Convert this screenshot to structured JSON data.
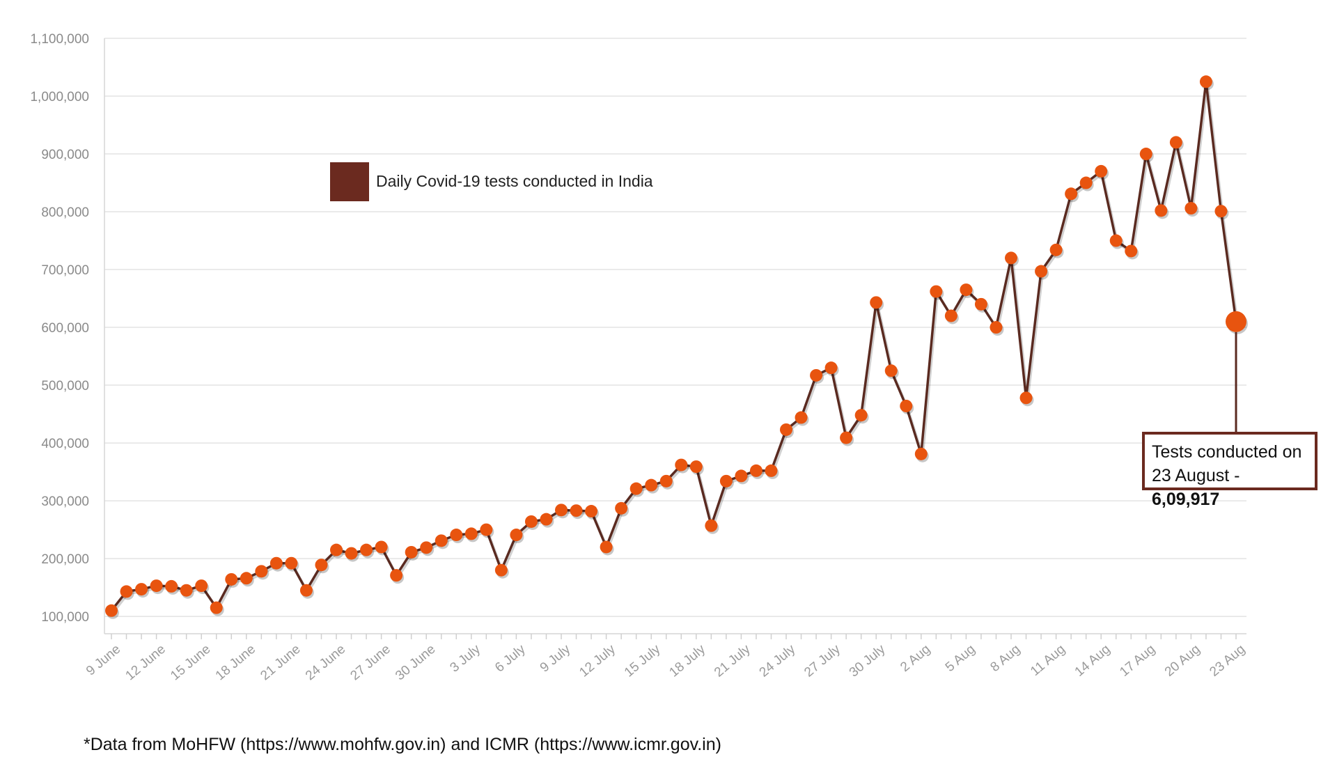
{
  "chart_data": {
    "type": "line",
    "title": "",
    "xlabel": "",
    "ylabel": "",
    "legend": {
      "label": "Daily Covid-19 tests conducted in India",
      "color": "#6b2a1f",
      "placement": "top-left"
    },
    "ylim": [
      70000,
      1100000
    ],
    "yticks": [
      100000,
      200000,
      300000,
      400000,
      500000,
      600000,
      700000,
      800000,
      900000,
      1000000,
      1100000
    ],
    "ytick_labels": [
      "100,000",
      "200,000",
      "300,000",
      "400,000",
      "500,000",
      "600,000",
      "700,000",
      "800,000",
      "900,000",
      "1,000,000",
      "1,100,000"
    ],
    "xtick_labels": [
      "9 June",
      "12 June",
      "15 June",
      "18 June",
      "21 June",
      "24 June",
      "27 June",
      "30 June",
      "3 July",
      "6 July",
      "9 July",
      "12 July",
      "15 July",
      "18 July",
      "21 July",
      "24 July",
      "27 July",
      "30 July",
      "2 Aug",
      "5 Aug",
      "8 Aug",
      "11 Aug",
      "14 Aug",
      "17 Aug",
      "20 Aug",
      "23 Aug"
    ],
    "series": [
      {
        "name": "Daily Covid-19 tests conducted in India",
        "line_color": "#5a2a20",
        "marker_color": "#e8540f",
        "values": [
          110000,
          143000,
          147000,
          153000,
          152000,
          145000,
          153000,
          115000,
          164000,
          166000,
          178000,
          192000,
          192000,
          145000,
          189000,
          215000,
          209000,
          215000,
          220000,
          171000,
          211000,
          219000,
          231000,
          241000,
          243000,
          250000,
          180000,
          241000,
          264000,
          268000,
          284000,
          283000,
          282000,
          220000,
          287000,
          321000,
          327000,
          334000,
          362000,
          359000,
          257000,
          334000,
          343000,
          352000,
          352000,
          423000,
          444000,
          517000,
          530000,
          409000,
          448000,
          643000,
          525000,
          464000,
          381000,
          662000,
          620000,
          665000,
          640000,
          600000,
          720000,
          478000,
          697000,
          734000,
          831000,
          850000,
          870000,
          750000,
          732000,
          900000,
          802000,
          920000,
          806000,
          1025000,
          801000,
          609917
        ]
      }
    ],
    "callout": {
      "line1": "Tests conducted on",
      "line2_prefix": "23 August - ",
      "line2_value": "6,09,917",
      "point_index": 75
    }
  },
  "footer": {
    "source": "*Data from MoHFW (https://www.mohfw.gov.in) and ICMR (https://www.icmr.gov.in)"
  }
}
